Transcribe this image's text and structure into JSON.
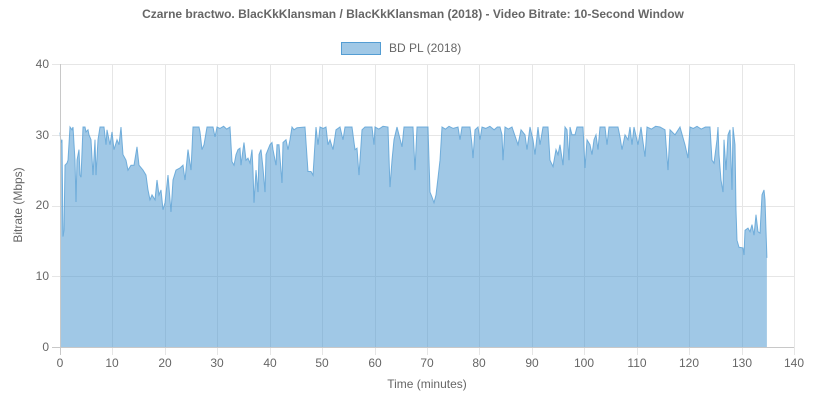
{
  "chart_data": {
    "type": "area",
    "title": "Czarne bractwo. BlacKkKlansman / BlacKkKlansman (2018) - Video Bitrate: 10-Second Window",
    "xlabel": "Time (minutes)",
    "ylabel": "Bitrate (Mbps)",
    "xlim": [
      0,
      140
    ],
    "ylim": [
      0,
      40
    ],
    "x_ticks": [
      "0",
      "10",
      "20",
      "30",
      "40",
      "50",
      "60",
      "70",
      "80",
      "90",
      "100",
      "110",
      "120",
      "130",
      "140"
    ],
    "y_ticks": [
      "0",
      "10",
      "20",
      "30",
      "40"
    ],
    "grid": true,
    "legend_position": "top",
    "colors": {
      "fill": "#a0c8e6",
      "line": "#5fa3d6",
      "grid": "#e6e6e6",
      "axis": "#c8c8c8"
    },
    "x": [
      0,
      0.19,
      0.38,
      0.57,
      0.76,
      0.95,
      1.34,
      1.53,
      1.91,
      2.29,
      2.48,
      2.86,
      3.05,
      3.24,
      3.62,
      3.81,
      4.01,
      4.39,
      4.77,
      4.96,
      5.34,
      5.53,
      5.91,
      6.29,
      6.68,
      6.87,
      7.25,
      7.63,
      8.39,
      8.77,
      8.96,
      9.16,
      9.54,
      9.92,
      10.3,
      10.87,
      11.25,
      11.63,
      12.02,
      12.59,
      12.97,
      13.54,
      14.11,
      14.69,
      15.07,
      15.83,
      16.4,
      16.78,
      17.17,
      17.55,
      18.12,
      18.5,
      18.88,
      19.26,
      19.65,
      20.03,
      20.6,
      21.17,
      21.55,
      22.12,
      22.89,
      23.46,
      23.84,
      24.41,
      24.99,
      25.37,
      26.51,
      26.7,
      27.08,
      27.47,
      28.04,
      29.18,
      29.56,
      29.94,
      30.5,
      31.2,
      31.8,
      32.42,
      32.81,
      33.19,
      33.57,
      33.95,
      34.33,
      34.52,
      34.9,
      35.09,
      35.48,
      35.86,
      36.24,
      36.62,
      36.81,
      37.0,
      37.38,
      37.76,
      37.96,
      38.34,
      38.72,
      39.1,
      39.29,
      39.67,
      40.05,
      40.43,
      40.63,
      41.2,
      41.39,
      41.77,
      42.34,
      42.53,
      43.11,
      43.49,
      43.87,
      44.25,
      44.63,
      45.2,
      46.73,
      47.3,
      47.87,
      48.25,
      48.83,
      49.21,
      49.59,
      50.2,
      50.73,
      51.12,
      51.5,
      52.07,
      52.64,
      53.4,
      53.98,
      54.36,
      55.69,
      56.27,
      56.65,
      57.03,
      57.6,
      58.17,
      59.51,
      59.89,
      60.08,
      60.8,
      61.6,
      62.56,
      62.94,
      63.32,
      63.7,
      64.28,
      65.23,
      65.61,
      67.33,
      67.71,
      68.09,
      70.19,
      70.38,
      70.57,
      70.95,
      71.33,
      71.71,
      72.1,
      72.48,
      72.86,
      73.5,
      74.2,
      75.0,
      75.91,
      76.29,
      76.67,
      78.2,
      78.58,
      78.77,
      79.15,
      79.73,
      80.11,
      80.49,
      81.2,
      82.0,
      82.8,
      83.4,
      83.92,
      84.3,
      84.49,
      84.87,
      85.5,
      86.21,
      87.35,
      87.93,
      88.69,
      89.07,
      89.64,
      90.22,
      90.6,
      91.17,
      91.55,
      92.12,
      93.08,
      93.46,
      94.03,
      94.6,
      94.98,
      95.37,
      95.94,
      96.32,
      96.7,
      97.08,
      97.27,
      97.65,
      98.23,
      98.61,
      99.75,
      100.13,
      100.51,
      101.09,
      101.47,
      101.85,
      102.23,
      102.61,
      102.99,
      103.95,
      104.33,
      104.71,
      106.43,
      106.81,
      107.19,
      107.76,
      108.34,
      108.72,
      109.1,
      109.48,
      110.24,
      110.81,
      111.58,
      111.96,
      112.8,
      113.6,
      114.44,
      115.39,
      115.96,
      116.35,
      117.3,
      118.25,
      119.21,
      119.78,
      120.16,
      120.8,
      121.5,
      122.3,
      123.1,
      123.97,
      124.36,
      124.74,
      125.31,
      125.5,
      125.69,
      126.07,
      126.45,
      126.65,
      127.03,
      127.41,
      127.79,
      128.17,
      128.36,
      128.74,
      128.93,
      129.12,
      129.51,
      130.27,
      130.46,
      130.65,
      131.22,
      131.6,
      131.98,
      132.37,
      132.75,
      133.13,
      133.51,
      133.89,
      134.27,
      134.46,
      134.65,
      134.84
    ],
    "series": [
      {
        "name": "BD PL (2018)",
        "values": [
          30.3,
          28.9,
          29.3,
          15.6,
          16.5,
          25.7,
          26.0,
          26.4,
          31.1,
          30.7,
          31.1,
          26.4,
          20.5,
          26.4,
          27.9,
          24.3,
          24.0,
          31.1,
          31.1,
          30.4,
          30.7,
          30.0,
          29.3,
          24.3,
          29.3,
          24.3,
          29.3,
          31.1,
          31.1,
          28.6,
          30.7,
          30.0,
          28.6,
          30.4,
          27.9,
          29.3,
          28.6,
          31.1,
          27.2,
          26.4,
          25.0,
          25.7,
          25.7,
          28.3,
          25.7,
          25.0,
          24.3,
          22.2,
          20.8,
          21.5,
          20.8,
          23.6,
          21.5,
          22.2,
          19.4,
          20.4,
          24.3,
          19.1,
          23.6,
          25.0,
          25.3,
          25.7,
          23.6,
          27.9,
          25.0,
          31.1,
          31.1,
          30.4,
          27.9,
          28.6,
          31.1,
          31.1,
          29.7,
          31.1,
          30.9,
          31.2,
          30.8,
          31.1,
          26.2,
          25.7,
          27.2,
          27.9,
          28.1,
          25.7,
          27.9,
          28.9,
          26.4,
          26.7,
          26.0,
          27.9,
          25.0,
          20.4,
          25.0,
          21.9,
          27.2,
          27.9,
          25.3,
          21.9,
          27.2,
          27.9,
          28.6,
          28.9,
          27.9,
          25.7,
          28.6,
          28.6,
          23.2,
          28.9,
          29.3,
          27.9,
          29.3,
          31.1,
          30.7,
          31.0,
          31.1,
          24.8,
          24.8,
          24.3,
          31.1,
          28.6,
          31.1,
          30.9,
          31.1,
          28.6,
          29.3,
          27.9,
          30.7,
          31.1,
          29.3,
          31.1,
          31.1,
          27.9,
          28.1,
          24.3,
          30.7,
          31.1,
          31.1,
          28.6,
          31.1,
          30.8,
          31.2,
          31.1,
          22.6,
          26.4,
          29.3,
          31.1,
          28.3,
          31.1,
          31.1,
          25.0,
          31.1,
          31.1,
          26.4,
          21.9,
          21.2,
          20.4,
          21.5,
          23.9,
          26.4,
          31.1,
          30.8,
          31.2,
          30.9,
          31.1,
          29.3,
          31.1,
          31.1,
          28.6,
          26.7,
          30.7,
          31.1,
          29.3,
          31.1,
          30.9,
          31.2,
          30.7,
          31.1,
          31.1,
          30.0,
          26.4,
          31.1,
          30.8,
          31.1,
          28.6,
          30.7,
          30.0,
          27.9,
          31.1,
          29.3,
          27.2,
          31.1,
          28.6,
          31.1,
          31.1,
          26.4,
          25.5,
          27.9,
          27.2,
          28.6,
          25.7,
          31.1,
          30.7,
          26.4,
          31.1,
          30.0,
          30.0,
          31.1,
          31.1,
          25.3,
          29.3,
          28.6,
          27.2,
          29.3,
          30.0,
          27.9,
          31.1,
          31.1,
          28.6,
          31.1,
          31.1,
          29.7,
          27.9,
          30.0,
          29.3,
          31.1,
          28.6,
          31.1,
          28.6,
          31.1,
          26.9,
          31.1,
          30.8,
          31.2,
          31.1,
          30.7,
          25.0,
          30.7,
          30.0,
          31.1,
          28.6,
          26.7,
          31.1,
          30.9,
          31.2,
          30.8,
          31.1,
          31.1,
          26.4,
          26.0,
          29.3,
          31.1,
          27.2,
          23.6,
          21.9,
          29.3,
          25.0,
          30.0,
          30.7,
          22.2,
          31.1,
          28.6,
          19.4,
          15.1,
          14.1,
          14.0,
          13.0,
          16.5,
          16.8,
          16.3,
          17.3,
          15.8,
          18.7,
          16.3,
          16.1,
          21.5,
          22.2,
          20.8,
          16.5,
          12.6
        ]
      }
    ]
  }
}
